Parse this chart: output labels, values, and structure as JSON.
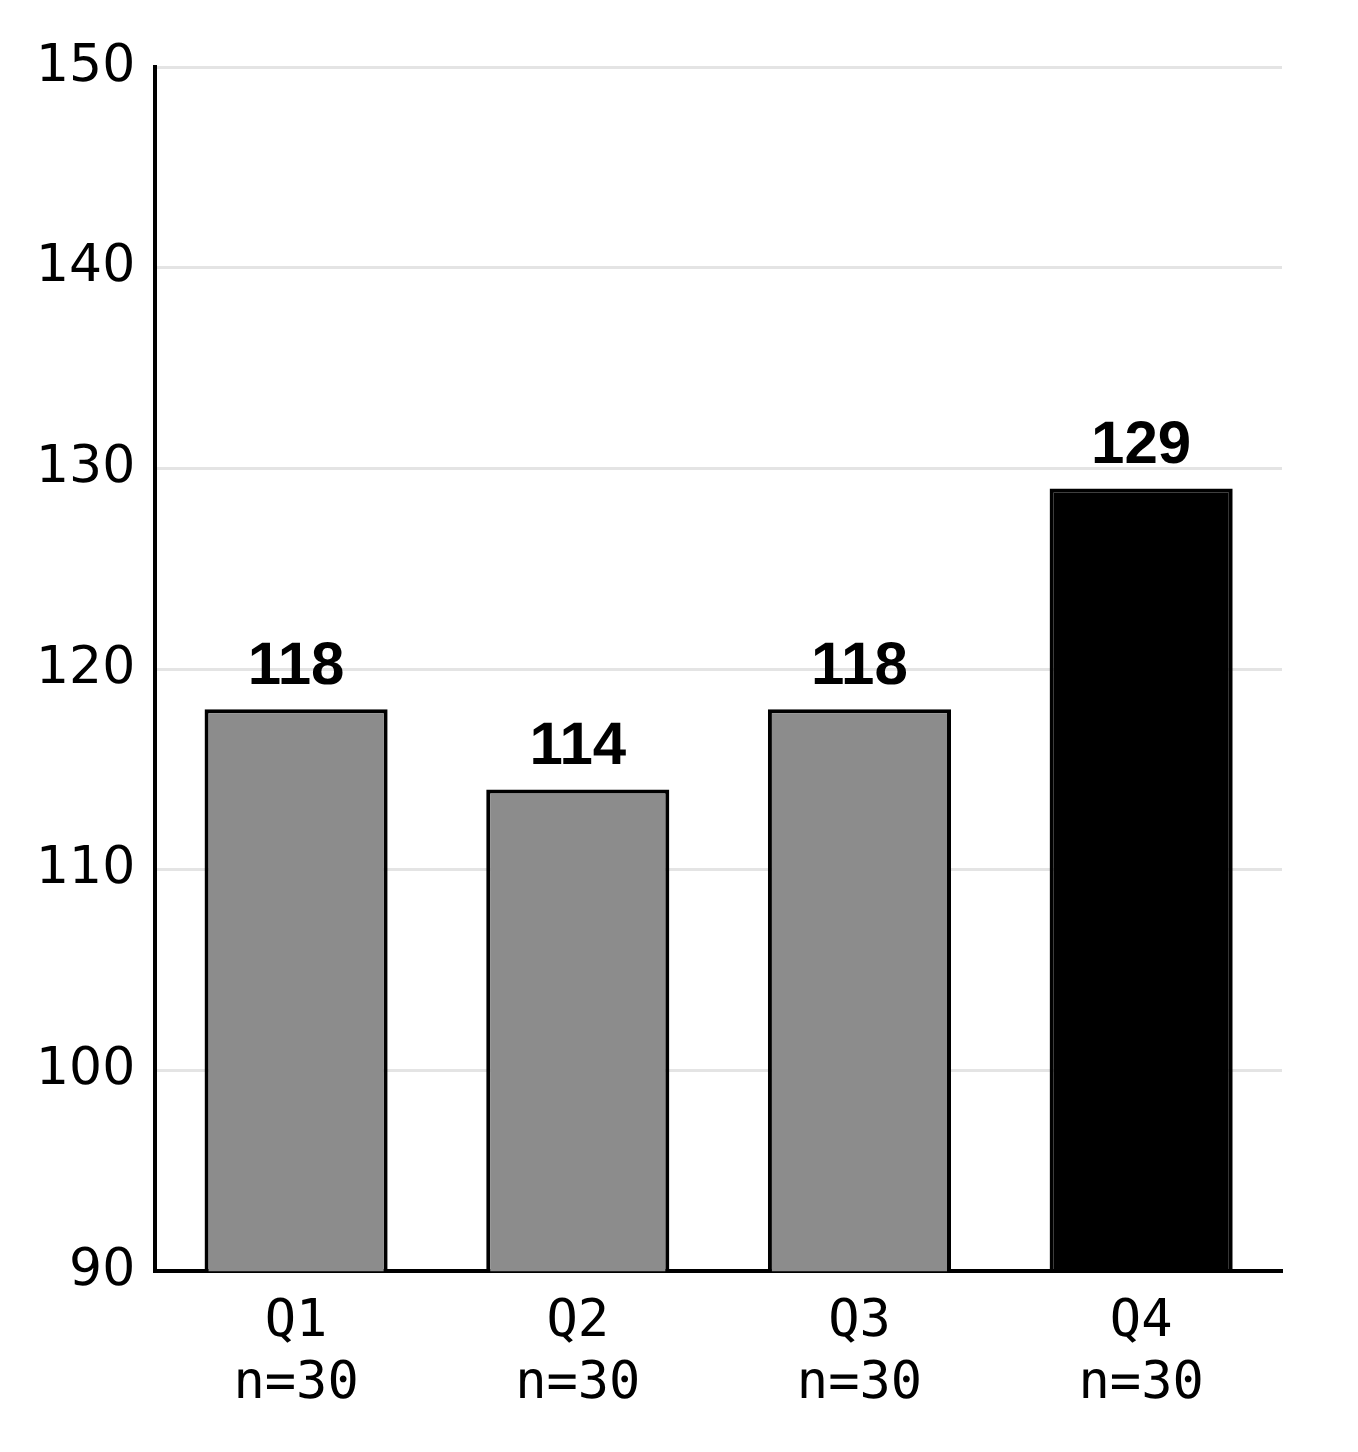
{
  "chart_data": {
    "type": "bar",
    "categories": [
      "Q1\nn=30",
      "Q2\nn=30",
      "Q3\nn=30",
      "Q4\nn=30"
    ],
    "values": [
      118,
      114,
      118,
      129
    ],
    "colors": [
      "#8c8c8c",
      "#8c8c8c",
      "#8c8c8c",
      "#000000"
    ],
    "ylim": [
      90,
      150
    ],
    "yticks": [
      90,
      100,
      110,
      120,
      130,
      140,
      150
    ],
    "grid": "y",
    "data_labels": true,
    "legend": false
  }
}
